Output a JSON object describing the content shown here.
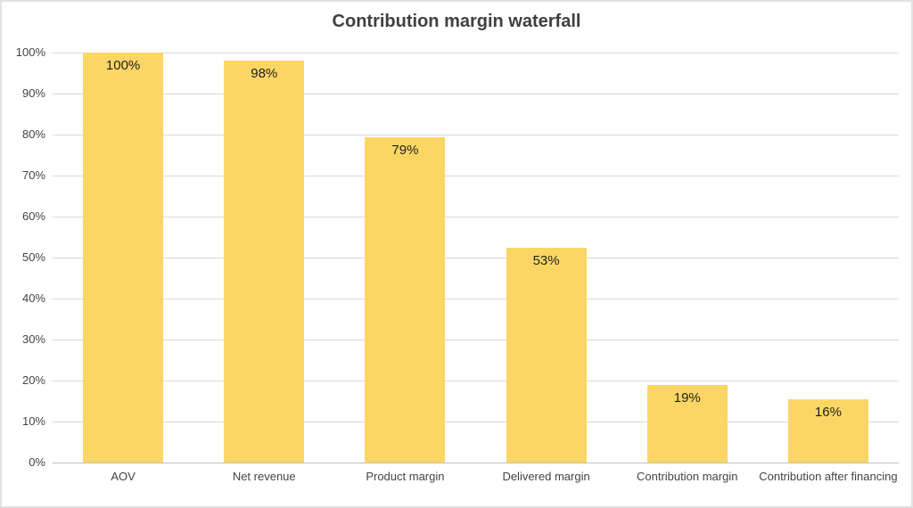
{
  "chart_data": {
    "type": "bar",
    "title": "Contribution margin waterfall",
    "categories": [
      "AOV",
      "Net revenue",
      "Product margin",
      "Delivered margin",
      "Contribution margin",
      "Contribution after financing"
    ],
    "values": [
      100,
      98,
      79.4,
      52.5,
      18.9,
      15.5
    ],
    "bar_labels": [
      "100%",
      "98%",
      "79%",
      "53%",
      "19%",
      "16%"
    ],
    "data_label_position": "inside-end",
    "xlabel": "",
    "ylabel": "",
    "ylim": [
      0,
      100
    ],
    "ytick_step": 10,
    "ytick_labels": [
      "0%",
      "10%",
      "20%",
      "30%",
      "40%",
      "50%",
      "60%",
      "70%",
      "80%",
      "90%",
      "100%"
    ],
    "grid": true,
    "legend": "none",
    "colors": {
      "bar_fill": "#FBD665",
      "gridline": "#D9D9D9",
      "axis_line": "#BFBFBF",
      "title_text": "#3F3F3F",
      "tick_text": "#444444",
      "data_label_text": "#1F1F1F",
      "background": "#FFFFFF",
      "frame_border": "#E2E2E2"
    }
  }
}
